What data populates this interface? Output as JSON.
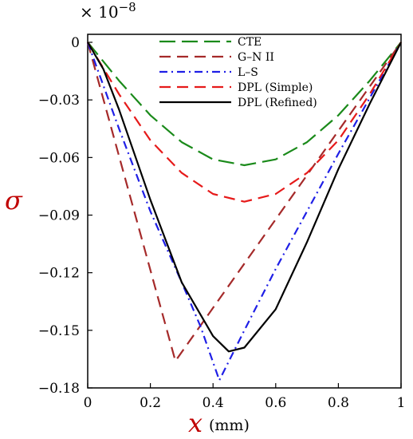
{
  "chart_data": {
    "type": "line",
    "scale_label": "× 10",
    "scale_exponent": "−8",
    "ylabel": "σ",
    "xlabel": "x",
    "xunit": "(mm)",
    "xlim": [
      0,
      1
    ],
    "ylim": [
      -0.18,
      0
    ],
    "xticks": [
      {
        "value": 0,
        "label": "0"
      },
      {
        "value": 0.2,
        "label": "0.2"
      },
      {
        "value": 0.4,
        "label": "0.4"
      },
      {
        "value": 0.6,
        "label": "0.6"
      },
      {
        "value": 0.8,
        "label": "0.8"
      },
      {
        "value": 1,
        "label": "1"
      }
    ],
    "yticks": [
      {
        "value": 0,
        "label": "0"
      },
      {
        "value": -0.03,
        "label": "−0.03"
      },
      {
        "value": -0.06,
        "label": "−0.06"
      },
      {
        "value": -0.09,
        "label": "−0.09"
      },
      {
        "value": -0.12,
        "label": "−0.12"
      },
      {
        "value": -0.15,
        "label": "−0.15"
      },
      {
        "value": -0.18,
        "label": "−0.18"
      }
    ],
    "grid": false,
    "legend_position": "top-center",
    "series": [
      {
        "name": "CTE",
        "color": "#1a8a1a",
        "dash": "long-dash",
        "x": [
          0,
          0.1,
          0.2,
          0.3,
          0.4,
          0.5,
          0.6,
          0.7,
          0.8,
          0.9,
          1
        ],
        "y": [
          0,
          -0.02,
          -0.038,
          -0.052,
          -0.061,
          -0.064,
          -0.061,
          -0.052,
          -0.038,
          -0.02,
          0
        ]
      },
      {
        "name": "G–N II",
        "color": "#a52a2a",
        "dash": "dash",
        "x": [
          0,
          0.28,
          1
        ],
        "y": [
          0,
          -0.166,
          0
        ]
      },
      {
        "name": "L–S",
        "color": "#1f1fe6",
        "dash": "dash-dot",
        "x": [
          0,
          0.1,
          0.2,
          0.3,
          0.36,
          0.42,
          0.5,
          0.6,
          0.7,
          0.8,
          0.9,
          1
        ],
        "y": [
          0,
          -0.045,
          -0.088,
          -0.125,
          -0.148,
          -0.176,
          -0.15,
          -0.118,
          -0.088,
          -0.058,
          -0.029,
          0
        ]
      },
      {
        "name": "DPL (Simple)",
        "color": "#e61a1a",
        "dash": "dash",
        "x": [
          0,
          0.1,
          0.2,
          0.3,
          0.4,
          0.5,
          0.6,
          0.7,
          0.8,
          0.9,
          1
        ],
        "y": [
          0,
          -0.027,
          -0.051,
          -0.068,
          -0.079,
          -0.083,
          -0.079,
          -0.068,
          -0.051,
          -0.027,
          0
        ]
      },
      {
        "name": "DPL (Refined)",
        "color": "#000000",
        "dash": "solid",
        "x": [
          0,
          0.05,
          0.1,
          0.2,
          0.3,
          0.4,
          0.45,
          0.5,
          0.6,
          0.7,
          0.8,
          0.9,
          0.95,
          1
        ],
        "y": [
          0,
          -0.014,
          -0.035,
          -0.082,
          -0.125,
          -0.153,
          -0.161,
          -0.159,
          -0.139,
          -0.104,
          -0.066,
          -0.032,
          -0.016,
          0
        ]
      }
    ]
  }
}
